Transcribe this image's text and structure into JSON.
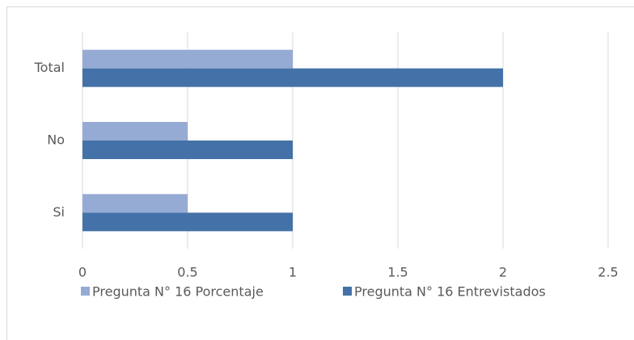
{
  "chart_data": {
    "type": "bar",
    "orientation": "horizontal",
    "categories": [
      "Si",
      "No",
      "Total"
    ],
    "series": [
      {
        "name": "Pregunta N° 16 Porcentaje",
        "color": "#95abd4",
        "values": [
          0.5,
          0.5,
          1
        ]
      },
      {
        "name": "Pregunta N° 16 Entrevistados",
        "color": "#4472a8",
        "values": [
          1,
          1,
          2
        ]
      }
    ],
    "xlim": [
      0,
      2.5
    ],
    "xticks": [
      0,
      0.5,
      1,
      1.5,
      2,
      2.5
    ],
    "grid": true,
    "legend": "bottom"
  }
}
